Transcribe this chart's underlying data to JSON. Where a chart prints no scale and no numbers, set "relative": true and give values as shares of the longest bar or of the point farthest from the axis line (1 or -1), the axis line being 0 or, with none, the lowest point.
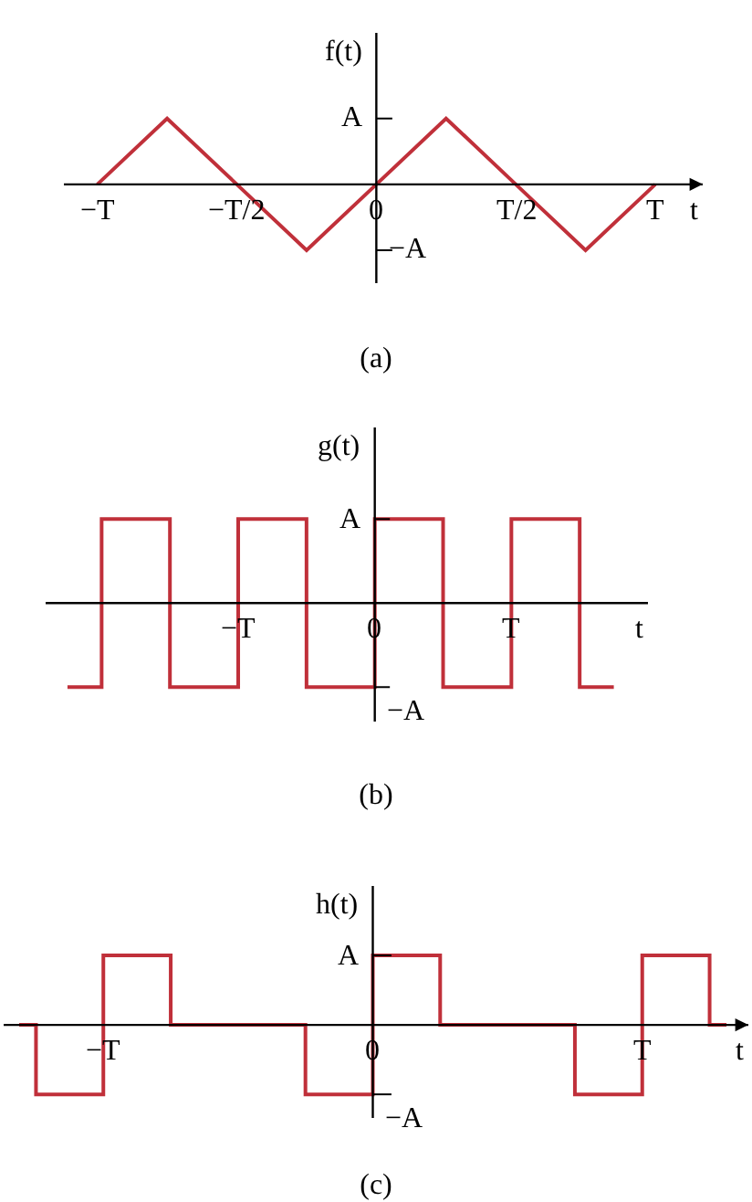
{
  "chart_data": [
    {
      "type": "line",
      "title": "(a)",
      "xlabel": "t",
      "ylabel": "f(t)",
      "relative": true,
      "marker": "none",
      "line_style": "solid",
      "categories": [
        "−T",
        null,
        "−T/2",
        null,
        "0",
        null,
        "T/2",
        null,
        "T"
      ],
      "annotations": [
        "A",
        "−A"
      ],
      "series": [
        {
          "color": "#c0303a",
          "values": [
            0,
            1,
            0,
            -1,
            0,
            1,
            0,
            -1,
            0
          ]
        }
      ]
    },
    {
      "type": "step",
      "title": "(b)",
      "xlabel": "t",
      "ylabel": "g(t)",
      "relative": true,
      "marker": "none",
      "line_style": "solid",
      "categories": [
        null,
        null,
        null,
        null,
        null,
        "−T",
        null,
        null,
        null,
        "0",
        null,
        null,
        null,
        "T",
        null,
        null,
        null
      ],
      "annotations": [
        "A",
        "−A"
      ],
      "series": [
        {
          "color": "#c0303a",
          "values": [
            -1,
            1,
            1,
            -1,
            -1,
            1,
            1,
            -1,
            -1,
            1,
            1,
            -1,
            -1,
            1,
            1,
            -1,
            -1
          ]
        }
      ]
    },
    {
      "type": "step",
      "title": "(c)",
      "xlabel": "t",
      "ylabel": "h(t)",
      "relative": true,
      "marker": "none",
      "line_style": "solid",
      "categories": [
        null,
        null,
        null,
        null,
        null,
        "−T",
        null,
        null,
        null,
        null,
        null,
        null,
        null,
        null,
        null,
        null,
        null,
        null,
        null,
        null,
        null,
        "0",
        null,
        null,
        null,
        null,
        null,
        null,
        null,
        null,
        null,
        null,
        null,
        null,
        null,
        null,
        null,
        "T",
        null,
        null,
        null,
        null,
        null
      ],
      "annotations": [
        "A",
        "−A"
      ],
      "series": [
        {
          "color": "#c0303a",
          "values": [
            0,
            -1,
            -1,
            -1,
            -1,
            1,
            1,
            1,
            1,
            0,
            0,
            0,
            0,
            0,
            0,
            0,
            0,
            -1,
            -1,
            -1,
            -1,
            1,
            1,
            1,
            1,
            0,
            0,
            0,
            0,
            0,
            0,
            0,
            0,
            -1,
            -1,
            -1,
            -1,
            1,
            1,
            1,
            1,
            0,
            0
          ]
        }
      ]
    }
  ]
}
